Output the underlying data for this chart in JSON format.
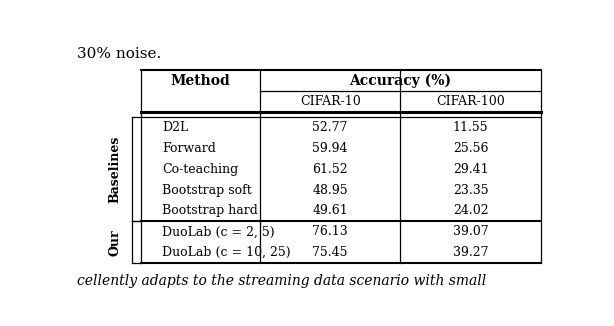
{
  "title_text": "30% noise.",
  "header_col1": "Method",
  "header_accuracy": "Accuracy (%)",
  "header_cifar10": "CIFAR-10",
  "header_cifar100": "CIFAR-100",
  "group_labels": [
    "Baselines",
    "Our"
  ],
  "rows": [
    {
      "group": "Baselines",
      "method": "D2L",
      "cifar10": "52.77",
      "cifar100": "11.55"
    },
    {
      "group": "Baselines",
      "method": "Forward",
      "cifar10": "59.94",
      "cifar100": "25.56"
    },
    {
      "group": "Baselines",
      "method": "Co-teaching",
      "cifar10": "61.52",
      "cifar100": "29.41"
    },
    {
      "group": "Baselines",
      "method": "Bootstrap soft",
      "cifar10": "48.95",
      "cifar100": "23.35"
    },
    {
      "group": "Baselines",
      "method": "Bootstrap hard",
      "cifar10": "49.61",
      "cifar100": "24.02"
    },
    {
      "group": "Our",
      "method": "DuoLab (c = 2, 5)",
      "cifar10": "76.13",
      "cifar100": "39.07"
    },
    {
      "group": "Our",
      "method": "DuoLab (c = 10, 25)",
      "cifar10": "75.45",
      "cifar100": "39.27"
    }
  ],
  "bg_color": "#ffffff",
  "text_color": "#000000",
  "line_color": "#000000",
  "font_size": 9,
  "title_font_size": 11,
  "bottom_text": "cellently adapts to the streaming data scenario with small"
}
